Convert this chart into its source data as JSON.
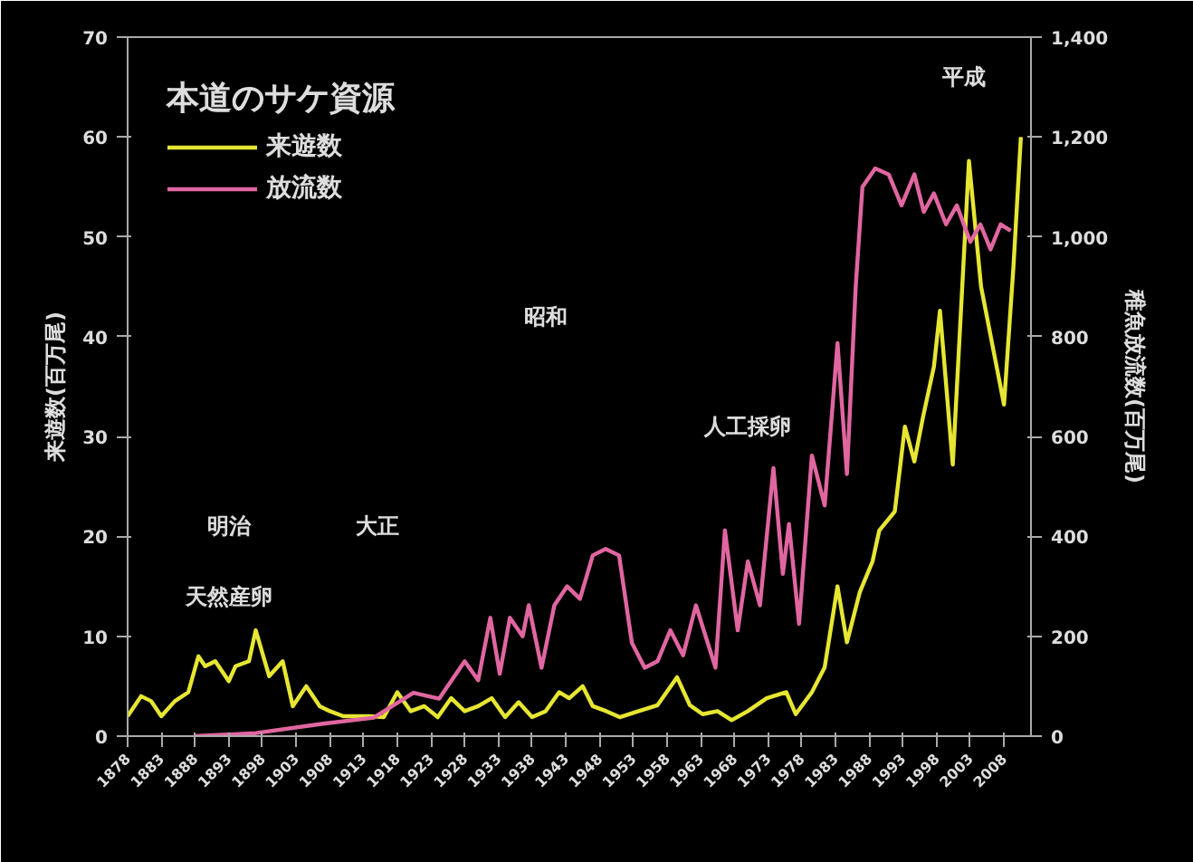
{
  "chart_data": {
    "type": "line",
    "legend_title": "本道のサケ資源",
    "ylabel": "来遊数(百万尾)",
    "y2label": "稚魚放流数(百万尾)",
    "annotations": [
      "明治",
      "大正",
      "昭和",
      "平成",
      "天然産卵",
      "人工採卵"
    ],
    "xlim": [
      1878,
      2012
    ],
    "xticks": [
      1878,
      1883,
      1888,
      1893,
      1898,
      1903,
      1908,
      1913,
      1918,
      1923,
      1928,
      1933,
      1938,
      1943,
      1948,
      1953,
      1958,
      1963,
      1968,
      1973,
      1978,
      1983,
      1988,
      1993,
      1998,
      2003,
      2008
    ],
    "ylim": [
      0,
      70
    ],
    "yticks": [
      0,
      10,
      20,
      30,
      40,
      50,
      60,
      70
    ],
    "y2lim": [
      0,
      1400
    ],
    "y2ticks": [
      0,
      {
        "value": 200,
        "label": "200"
      },
      {
        "value": 400,
        "label": "400"
      },
      {
        "value": 600,
        "label": "600"
      },
      {
        "value": 800,
        "label": "800"
      },
      {
        "value": 1000,
        "label": "1,000"
      },
      {
        "value": 1200,
        "label": "1,200"
      },
      {
        "value": 1400,
        "label": "1,400"
      }
    ],
    "grid": false,
    "legend": "top left",
    "marker": "none",
    "line_style": "solid",
    "series": [
      {
        "name": "来遊数",
        "color": "#e6e633",
        "x": [
          1878,
          1880,
          1881.5,
          1883,
          1885,
          1887,
          1888.5,
          1889.5,
          1891,
          1893,
          1894,
          1896,
          1897,
          1899,
          1901,
          1902.5,
          1904.5,
          1906.5,
          1908,
          1910,
          1912,
          1914,
          1916,
          1918,
          1920,
          1922,
          1924,
          1926,
          1928,
          1930,
          1932,
          1934,
          1936,
          1938,
          1940,
          1942,
          1943.5,
          1945.5,
          1947,
          1949,
          1951,
          1953.8,
          1956.6,
          1959.5,
          1961.4,
          1963.3,
          1965.5,
          1967.6,
          1970,
          1972.8,
          1975.7,
          1977.1,
          1979.5,
          1981.4,
          1983.3,
          1984.7,
          1986.6,
          1988.5,
          1989.5,
          1991.8,
          1993.3,
          1994.7,
          1996,
          1997.6,
          1998.5,
          2000.4,
          2002.8,
          2004.6,
          2008,
          2009.4,
          2010.5
        ],
        "values": [
          2,
          4,
          3.5,
          2,
          3.5,
          4.4,
          8,
          7,
          7.5,
          5.5,
          7,
          7.5,
          10.6,
          6,
          7.5,
          3,
          5,
          3,
          2.5,
          2,
          2,
          2,
          1.9,
          4.4,
          2.5,
          3,
          1.9,
          3.8,
          2.5,
          3,
          3.8,
          1.9,
          3.4,
          1.9,
          2.5,
          4.4,
          3.8,
          5,
          3,
          2.5,
          1.9,
          2.5,
          3.1,
          5.9,
          3.1,
          2.2,
          2.5,
          1.6,
          2.5,
          3.8,
          4.4,
          2.2,
          4.4,
          6.9,
          15,
          9.4,
          14.4,
          17.5,
          20.6,
          22.5,
          31,
          27.5,
          32,
          37,
          42.6,
          27.2,
          57.6,
          45,
          33.2,
          47,
          60
        ]
      },
      {
        "name": "放流数",
        "color": "#e066a0",
        "axis": "y2",
        "x": [
          1888,
          1897,
          1907,
          1914.5,
          1920.4,
          1924.2,
          1928,
          1930,
          1931.8,
          1933.2,
          1934.7,
          1936.6,
          1937.5,
          1939.4,
          1941.3,
          1943.2,
          1945.1,
          1947,
          1948.9,
          1950.9,
          1952.8,
          1954.7,
          1956.6,
          1958.5,
          1960.4,
          1962.3,
          1965.2,
          1966.6,
          1968.5,
          1970,
          1971.8,
          1973.8,
          1975.2,
          1976.1,
          1977.6,
          1979.5,
          1981.4,
          1983.3,
          1984.7,
          1986,
          1987,
          1988.9,
          1990.9,
          1992.8,
          1994.7,
          1996.1,
          1997.6,
          1999.4,
          2001,
          2003,
          2004.5,
          2006,
          2007.5,
          2009
        ],
        "values": [
          0,
          6,
          25,
          37,
          87,
          75,
          150,
          112,
          237,
          125,
          237,
          200,
          262,
          137,
          262,
          300,
          275,
          362,
          375,
          362,
          187,
          137,
          150,
          212,
          162,
          262,
          137,
          412,
          212,
          350,
          262,
          537,
          325,
          425,
          225,
          562,
          462,
          787,
          525,
          900,
          1100,
          1137,
          1125,
          1063,
          1125,
          1050,
          1087,
          1025,
          1063,
          990,
          1025,
          975,
          1025,
          1012
        ]
      }
    ]
  }
}
